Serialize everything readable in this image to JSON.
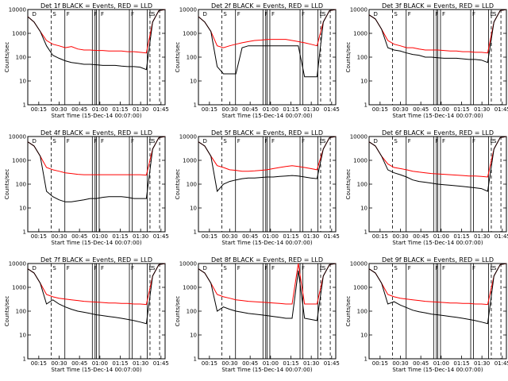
{
  "colors": {
    "events": "#000000",
    "lld": "#ff0000",
    "frame": "#000000"
  },
  "shared": {
    "xlabel": "Start Time (15-Dec-14 00:07:00)",
    "ylabel": "Counts/sec",
    "xticks": [
      "00:15",
      "00:30",
      "00:45",
      "01:00",
      "01:15",
      "01:30",
      "01:45"
    ],
    "yticks": [
      "1",
      "10",
      "100",
      "1000",
      "10000"
    ],
    "yscale": "log"
  },
  "chart_data": [
    {
      "type": "line",
      "title": "Det 1f BLACK = Events, RED = LLD",
      "ylim": [
        1,
        10000
      ],
      "series": [
        {
          "values": [
            5000,
            3000,
            1200,
            500,
            350,
            300,
            250,
            280,
            220,
            200,
            200,
            190,
            190,
            180,
            180,
            180,
            170,
            170,
            160,
            150,
            3000,
            9000,
            10000
          ]
        },
        {
          "values": [
            5000,
            3000,
            1200,
            300,
            120,
            90,
            70,
            60,
            55,
            50,
            50,
            48,
            45,
            45,
            45,
            42,
            40,
            40,
            38,
            30,
            3000,
            9000,
            10000
          ]
        }
      ],
      "markers": [
        "D",
        "S",
        "F",
        "F",
        "F",
        "F",
        "E",
        "S"
      ]
    },
    {
      "type": "line",
      "title": "Det 2f BLACK = Events, RED = LLD",
      "ylim": [
        1,
        10000
      ],
      "series": [
        {
          "values": [
            5000,
            3000,
            1200,
            300,
            250,
            300,
            350,
            400,
            450,
            500,
            520,
            550,
            560,
            560,
            560,
            500,
            450,
            400,
            350,
            300,
            3000,
            9000,
            10000
          ]
        },
        {
          "values": [
            5000,
            3000,
            1200,
            40,
            20,
            20,
            20,
            250,
            300,
            300,
            300,
            300,
            300,
            300,
            300,
            300,
            300,
            15,
            15,
            15,
            3000,
            9000,
            10000
          ]
        }
      ],
      "markers": [
        "D",
        "S",
        "F",
        "F",
        "F",
        "F",
        "E",
        "S"
      ]
    },
    {
      "type": "line",
      "title": "Det 3f BLACK = Events, RED = LLD",
      "ylim": [
        1,
        10000
      ],
      "series": [
        {
          "values": [
            6000,
            4000,
            1500,
            500,
            350,
            300,
            250,
            250,
            220,
            200,
            200,
            200,
            190,
            180,
            180,
            170,
            170,
            160,
            160,
            150,
            3000,
            9000,
            10000
          ]
        },
        {
          "values": [
            6000,
            4000,
            1500,
            250,
            200,
            180,
            150,
            130,
            120,
            100,
            100,
            95,
            90,
            90,
            90,
            85,
            80,
            80,
            75,
            60,
            3000,
            9000,
            10000
          ]
        }
      ],
      "markers": [
        "D",
        "S",
        "F",
        "F",
        "F",
        "F",
        "E",
        "S"
      ]
    },
    {
      "type": "line",
      "title": "Det 4f BLACK = Events, RED = LLD",
      "ylim": [
        1,
        10000
      ],
      "series": [
        {
          "values": [
            6000,
            4000,
            1500,
            500,
            400,
            350,
            300,
            280,
            260,
            250,
            250,
            250,
            250,
            250,
            250,
            250,
            250,
            250,
            250,
            240,
            3000,
            9000,
            10000
          ]
        },
        {
          "values": [
            6000,
            4000,
            1500,
            50,
            30,
            22,
            18,
            18,
            20,
            22,
            25,
            25,
            28,
            30,
            30,
            30,
            28,
            25,
            25,
            25,
            3000,
            9000,
            10000
          ]
        }
      ],
      "markers": [
        "D",
        "S",
        "F",
        "F",
        "F",
        "F",
        "E",
        "S"
      ]
    },
    {
      "type": "line",
      "title": "Det 5f BLACK = Events, RED = LLD",
      "ylim": [
        1,
        10000
      ],
      "series": [
        {
          "values": [
            6000,
            4000,
            1500,
            600,
            500,
            400,
            380,
            350,
            350,
            360,
            380,
            400,
            450,
            500,
            550,
            600,
            550,
            500,
            450,
            400,
            3000,
            9000,
            10000
          ]
        },
        {
          "values": [
            6000,
            4000,
            1500,
            50,
            100,
            130,
            150,
            170,
            180,
            180,
            190,
            200,
            200,
            210,
            220,
            230,
            220,
            200,
            180,
            170,
            3000,
            9000,
            10000
          ]
        }
      ],
      "markers": [
        "D",
        "S",
        "F",
        "F",
        "F",
        "F",
        "E",
        "S"
      ]
    },
    {
      "type": "line",
      "title": "Det 6f BLACK = Events, RED = LLD",
      "ylim": [
        1,
        10000
      ],
      "series": [
        {
          "values": [
            6000,
            4000,
            1500,
            700,
            500,
            450,
            400,
            350,
            320,
            300,
            280,
            270,
            260,
            250,
            240,
            230,
            220,
            220,
            210,
            200,
            3000,
            9000,
            10000
          ]
        },
        {
          "values": [
            6000,
            4000,
            1500,
            400,
            300,
            250,
            200,
            150,
            130,
            120,
            110,
            100,
            95,
            90,
            85,
            80,
            75,
            70,
            65,
            50,
            3000,
            9000,
            10000
          ]
        }
      ],
      "markers": [
        "D",
        "S",
        "F",
        "F",
        "F",
        "F",
        "E",
        "S"
      ]
    },
    {
      "type": "line",
      "title": "Det 7f BLACK = Events, RED = LLD",
      "ylim": [
        1,
        10000
      ],
      "series": [
        {
          "values": [
            6000,
            4000,
            1500,
            500,
            400,
            350,
            320,
            300,
            280,
            260,
            250,
            240,
            230,
            220,
            220,
            210,
            210,
            200,
            200,
            190,
            3000,
            9000,
            10000
          ]
        },
        {
          "values": [
            6000,
            4000,
            1500,
            200,
            300,
            200,
            150,
            120,
            100,
            90,
            80,
            70,
            65,
            60,
            55,
            50,
            45,
            40,
            35,
            30,
            3000,
            9000,
            10000
          ]
        }
      ],
      "markers": [
        "D",
        "S",
        "F",
        "F",
        "F",
        "F",
        "E",
        "S"
      ]
    },
    {
      "type": "line",
      "title": "Det 8f BLACK = Events, RED = LLD",
      "ylim": [
        1,
        10000
      ],
      "series": [
        {
          "values": [
            6000,
            4000,
            1500,
            500,
            400,
            350,
            300,
            280,
            260,
            250,
            240,
            230,
            220,
            210,
            200,
            200,
            10000,
            200,
            200,
            200,
            3000,
            9000,
            10000
          ]
        },
        {
          "values": [
            6000,
            4000,
            1500,
            100,
            150,
            120,
            100,
            90,
            80,
            75,
            70,
            65,
            60,
            55,
            50,
            50,
            5000,
            50,
            45,
            40,
            3000,
            9000,
            10000
          ]
        }
      ],
      "markers": [
        "D",
        "S",
        "F",
        "F",
        "F",
        "F",
        "E",
        "S"
      ]
    },
    {
      "type": "line",
      "title": "Det 9f BLACK = Events, RED = LLD",
      "ylim": [
        1,
        10000
      ],
      "series": [
        {
          "values": [
            6000,
            4000,
            1500,
            500,
            400,
            350,
            320,
            300,
            280,
            260,
            250,
            240,
            230,
            220,
            220,
            210,
            210,
            200,
            200,
            190,
            3000,
            9000,
            10000
          ]
        },
        {
          "values": [
            6000,
            4000,
            1500,
            200,
            250,
            180,
            140,
            110,
            95,
            85,
            75,
            70,
            65,
            60,
            55,
            50,
            45,
            40,
            35,
            30,
            3000,
            9000,
            10000
          ]
        }
      ],
      "markers": [
        "D",
        "S",
        "F",
        "F",
        "F",
        "F",
        "E",
        "S"
      ]
    }
  ]
}
